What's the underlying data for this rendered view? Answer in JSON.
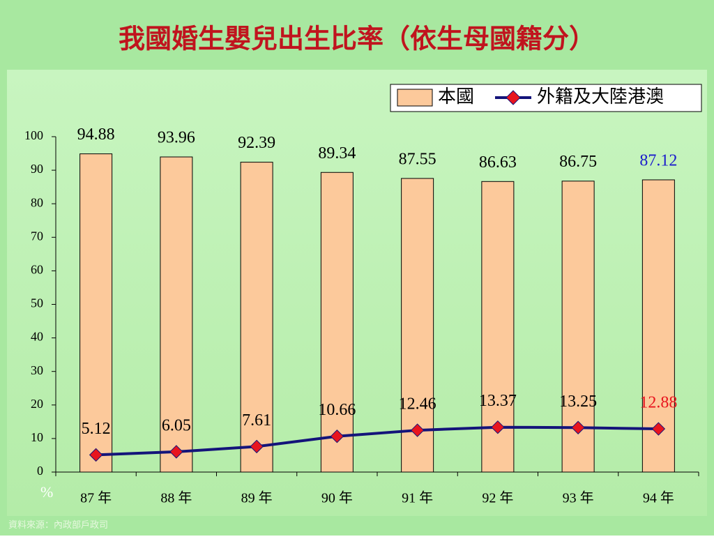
{
  "chart_data": {
    "type": "bar-line",
    "title": "我國婚生嬰兒出生比率（依生母國籍分）",
    "categories": [
      "87 年",
      "88 年",
      "89 年",
      "90 年",
      "91 年",
      "92 年",
      "93 年",
      "94 年"
    ],
    "series": [
      {
        "name": "本國",
        "type": "bar",
        "color": "#fcc99b",
        "values": [
          94.88,
          93.96,
          92.39,
          89.34,
          87.55,
          86.63,
          86.75,
          87.12
        ],
        "label_colors": [
          "#000000",
          "#000000",
          "#000000",
          "#000000",
          "#000000",
          "#000000",
          "#000000",
          "#1a1acc"
        ]
      },
      {
        "name": "外籍及大陸港澳",
        "type": "line",
        "color": "#14147a",
        "marker_color": "#e8141e",
        "values": [
          5.12,
          6.05,
          7.61,
          10.66,
          12.46,
          13.37,
          13.25,
          12.88
        ],
        "label_colors": [
          "#000000",
          "#000000",
          "#000000",
          "#000000",
          "#000000",
          "#000000",
          "#000000",
          "#e8141e"
        ]
      }
    ],
    "ylim": [
      0,
      100
    ],
    "yticks": [
      0,
      10,
      20,
      30,
      40,
      50,
      60,
      70,
      80,
      90,
      100
    ],
    "unit": "%",
    "grid": false,
    "legend": "top-right",
    "source": "資料來源：內政部戶政司"
  }
}
